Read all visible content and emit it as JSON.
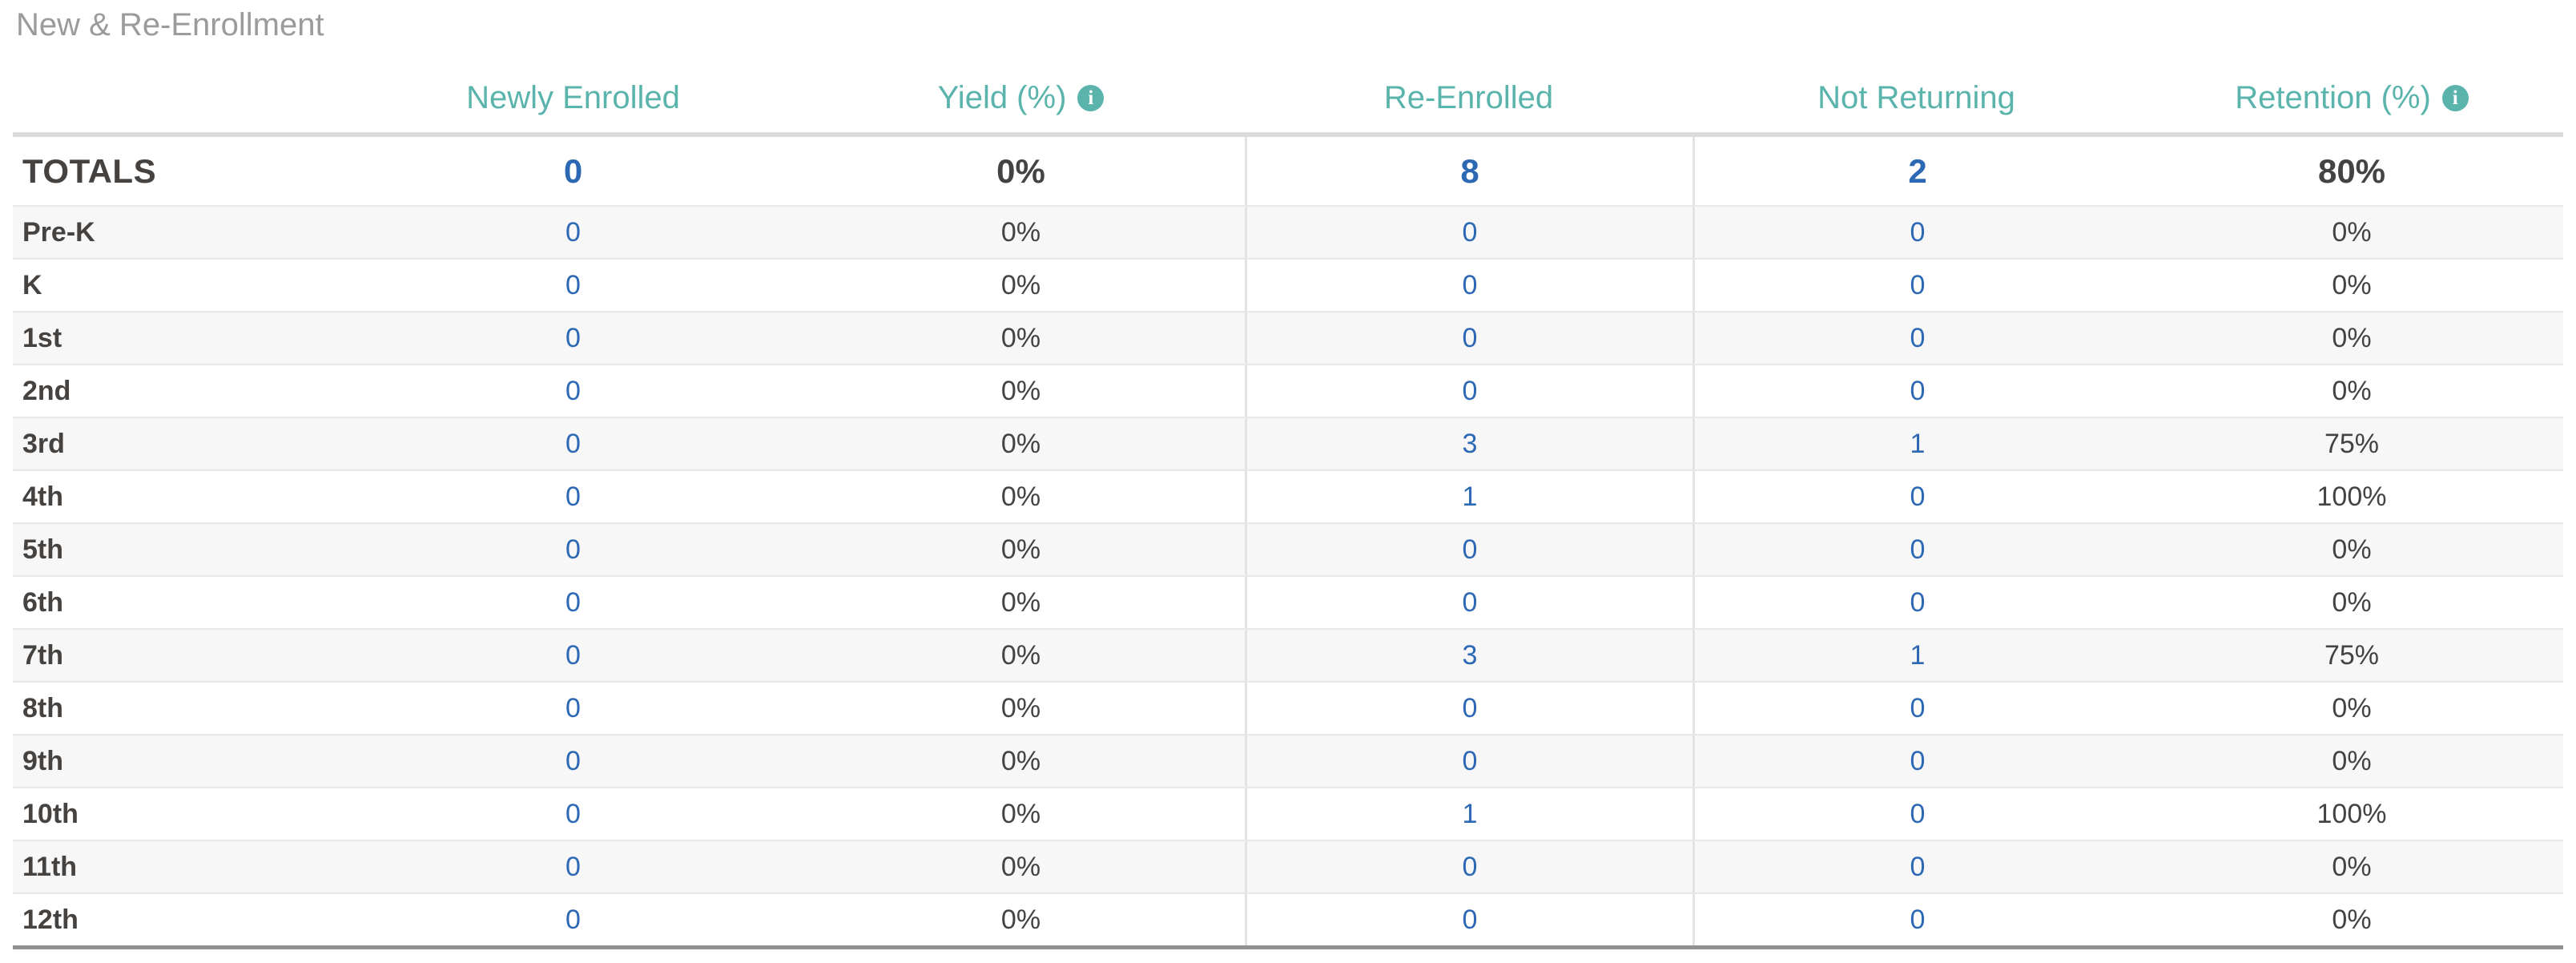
{
  "title": "New & Re-Enrollment",
  "colors": {
    "accent_teal": "#5ab4ac",
    "link_blue": "#2c68b4",
    "dark_text": "#454240",
    "title_gray": "#9b9b9b",
    "alt_row_bg": "#f7f7f7"
  },
  "table": {
    "columns": [
      {
        "label": "Newly Enrolled",
        "info": false,
        "type": "link"
      },
      {
        "label": "Yield (%)",
        "info": true,
        "type": "pct"
      },
      {
        "label": "Re-Enrolled",
        "info": false,
        "type": "link"
      },
      {
        "label": "Not Returning",
        "info": false,
        "type": "link"
      },
      {
        "label": "Retention (%)",
        "info": true,
        "type": "pct"
      }
    ],
    "info_icon_glyph": "i",
    "totals": {
      "label": "TOTALS",
      "values": [
        "0",
        "0%",
        "8",
        "2",
        "80%"
      ]
    },
    "rows": [
      {
        "label": "Pre-K",
        "values": [
          "0",
          "0%",
          "0",
          "0",
          "0%"
        ]
      },
      {
        "label": "K",
        "values": [
          "0",
          "0%",
          "0",
          "0",
          "0%"
        ]
      },
      {
        "label": "1st",
        "values": [
          "0",
          "0%",
          "0",
          "0",
          "0%"
        ]
      },
      {
        "label": "2nd",
        "values": [
          "0",
          "0%",
          "0",
          "0",
          "0%"
        ]
      },
      {
        "label": "3rd",
        "values": [
          "0",
          "0%",
          "3",
          "1",
          "75%"
        ]
      },
      {
        "label": "4th",
        "values": [
          "0",
          "0%",
          "1",
          "0",
          "100%"
        ]
      },
      {
        "label": "5th",
        "values": [
          "0",
          "0%",
          "0",
          "0",
          "0%"
        ]
      },
      {
        "label": "6th",
        "values": [
          "0",
          "0%",
          "0",
          "0",
          "0%"
        ]
      },
      {
        "label": "7th",
        "values": [
          "0",
          "0%",
          "3",
          "1",
          "75%"
        ]
      },
      {
        "label": "8th",
        "values": [
          "0",
          "0%",
          "0",
          "0",
          "0%"
        ]
      },
      {
        "label": "9th",
        "values": [
          "0",
          "0%",
          "0",
          "0",
          "0%"
        ]
      },
      {
        "label": "10th",
        "values": [
          "0",
          "0%",
          "1",
          "0",
          "100%"
        ]
      },
      {
        "label": "11th",
        "values": [
          "0",
          "0%",
          "0",
          "0",
          "0%"
        ]
      },
      {
        "label": "12th",
        "values": [
          "0",
          "0%",
          "0",
          "0",
          "0%"
        ]
      }
    ]
  }
}
